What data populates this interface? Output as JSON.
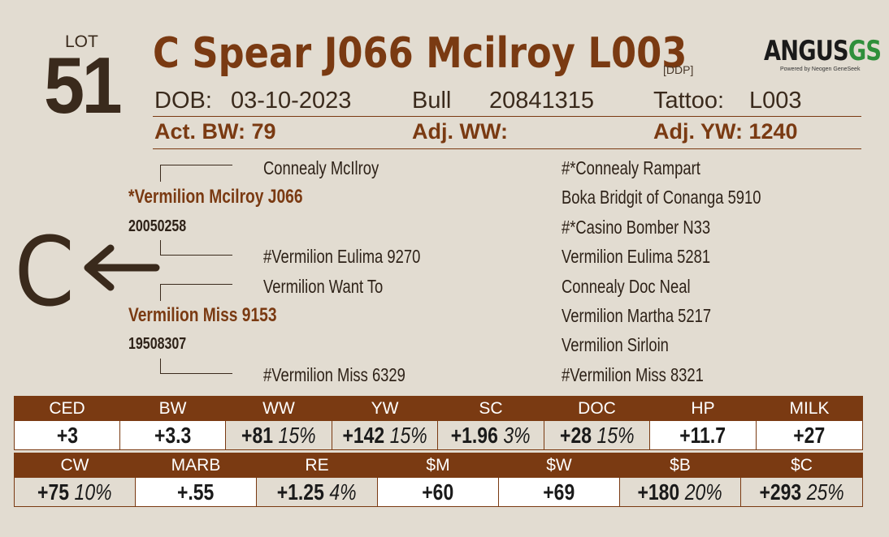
{
  "lot": {
    "label": "LOT",
    "number": "51"
  },
  "animal": {
    "name": "C Spear J066 Mcilroy L003",
    "reg_tag": "[DDP]",
    "dob_label": "DOB:",
    "dob": "03-10-2023",
    "sex": "Bull",
    "reg_number": "20841315",
    "tattoo_label": "Tattoo:",
    "tattoo": "L003"
  },
  "logo": {
    "brand_main": "ANGUS",
    "brand_accent": "GS",
    "tagline": "Powered by Neogen GeneSeek"
  },
  "stats": {
    "act_bw": "Act. BW: 79",
    "adj_ww": "Adj. WW:",
    "adj_yw": "Adj. YW: 1240"
  },
  "pedigree": {
    "sire": {
      "name": "*Vermilion Mcilroy J066",
      "reg": "20050258"
    },
    "sire_sire": "Connealy McIlroy",
    "sire_dam": "#Vermilion Eulima 9270",
    "dam": {
      "name": "Vermilion Miss 9153",
      "reg": "19508307"
    },
    "dam_sire": "Vermilion Want To",
    "dam_dam": "#Vermilion Miss 6329",
    "great_grandparents": [
      "#*Connealy Rampart",
      "Boka Bridgit of Conanga 5910",
      "#*Casino Bomber N33",
      "Vermilion Eulima 5281",
      "Connealy Doc Neal",
      "Vermilion Martha 5217",
      "Vermilion Sirloin",
      "#Vermilion Miss 8321"
    ]
  },
  "brand_mark": {
    "letter": "C"
  },
  "epd_row1": [
    {
      "label": "CED",
      "value": "+3",
      "pct": "",
      "shaded": false
    },
    {
      "label": "BW",
      "value": "+3.3",
      "pct": "",
      "shaded": false
    },
    {
      "label": "WW",
      "value": "+81",
      "pct": "15%",
      "shaded": true
    },
    {
      "label": "YW",
      "value": "+142",
      "pct": "15%",
      "shaded": true
    },
    {
      "label": "SC",
      "value": "+1.96",
      "pct": "3%",
      "shaded": true
    },
    {
      "label": "DOC",
      "value": "+28",
      "pct": "15%",
      "shaded": true
    },
    {
      "label": "HP",
      "value": "+11.7",
      "pct": "",
      "shaded": false
    },
    {
      "label": "MILK",
      "value": "+27",
      "pct": "",
      "shaded": false
    }
  ],
  "epd_row2": [
    {
      "label": "CW",
      "value": "+75",
      "pct": "10%",
      "shaded": true
    },
    {
      "label": "MARB",
      "value": "+.55",
      "pct": "",
      "shaded": false
    },
    {
      "label": "RE",
      "value": "+1.25",
      "pct": "4%",
      "shaded": true
    },
    {
      "label": "$M",
      "value": "+60",
      "pct": "",
      "shaded": false
    },
    {
      "label": "$W",
      "value": "+69",
      "pct": "",
      "shaded": false
    },
    {
      "label": "$B",
      "value": "+180",
      "pct": "20%",
      "shaded": true
    },
    {
      "label": "$C",
      "value": "+293",
      "pct": "25%",
      "shaded": true
    }
  ],
  "colors": {
    "accent": "#7a3a12",
    "background": "#e2dcd1",
    "text": "#3a2a1c",
    "logo_green": "#2f8f3a"
  }
}
